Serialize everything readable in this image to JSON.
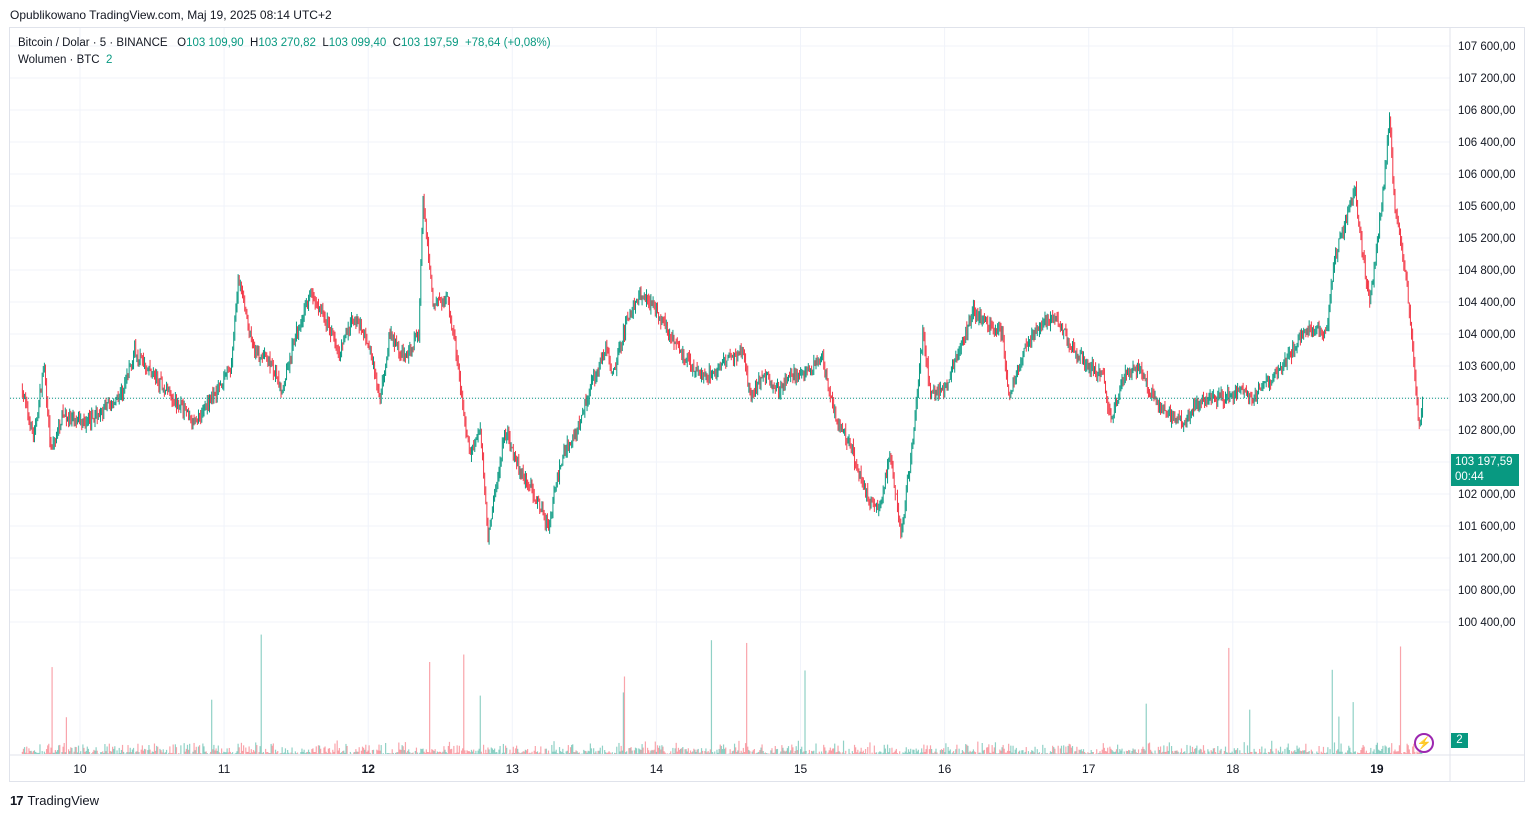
{
  "published": "Opublikowano TradingView.com, Maj 19, 2025 08:14 UTC+2",
  "legend": {
    "symbol": "Bitcoin / Dolar · 5 · BINANCE",
    "o_label": "O",
    "o_value": "103 109,90",
    "h_label": "H",
    "h_value": "103 270,82",
    "l_label": "L",
    "l_value": "103 099,40",
    "c_label": "C",
    "c_value": "103 197,59",
    "change": "+78,64 (+0,08%)",
    "volume_label": "Wolumen · BTC",
    "volume_value": "2"
  },
  "price_badge": {
    "price": "103 197,59",
    "countdown": "00:44"
  },
  "volume_badge": "2",
  "footer_brand": "TradingView",
  "colors": {
    "up": "#089981",
    "down": "#F23645",
    "grid": "#f0f3fa",
    "text": "#131722"
  },
  "chart_data": {
    "type": "candlestick",
    "symbol": "BTCUSD",
    "interval": "5",
    "y_ticks": [
      "107 600,00",
      "107 200,00",
      "106 800,00",
      "106 400,00",
      "106 000,00",
      "105 600,00",
      "105 200,00",
      "104 800,00",
      "104 400,00",
      "104 000,00",
      "103 600,00",
      "103 200,00",
      "102 800,00",
      "102 400,00",
      "102 000,00",
      "101 600,00",
      "101 200,00",
      "100 800,00",
      "100 400,00"
    ],
    "x_ticks": [
      "10",
      "11",
      "12",
      "13",
      "14",
      "15",
      "16",
      "17",
      "18",
      "19"
    ],
    "ylim": [
      100100,
      107900
    ],
    "last_price": 103197.59,
    "price_path": [
      [
        9.6,
        103300
      ],
      [
        9.68,
        102700
      ],
      [
        9.75,
        103600
      ],
      [
        9.8,
        102500
      ],
      [
        9.88,
        103000
      ],
      [
        9.95,
        102900
      ],
      [
        10.05,
        102900
      ],
      [
        10.2,
        103100
      ],
      [
        10.3,
        103300
      ],
      [
        10.38,
        103800
      ],
      [
        10.5,
        103500
      ],
      [
        10.65,
        103200
      ],
      [
        10.8,
        102900
      ],
      [
        10.95,
        103300
      ],
      [
        11.05,
        103600
      ],
      [
        11.1,
        104700
      ],
      [
        11.2,
        103800
      ],
      [
        11.3,
        103700
      ],
      [
        11.4,
        103300
      ],
      [
        11.5,
        104000
      ],
      [
        11.6,
        104500
      ],
      [
        11.7,
        104200
      ],
      [
        11.8,
        103800
      ],
      [
        11.9,
        104200
      ],
      [
        12.0,
        103900
      ],
      [
        12.08,
        103200
      ],
      [
        12.15,
        104000
      ],
      [
        12.25,
        103700
      ],
      [
        12.35,
        104000
      ],
      [
        12.38,
        105700
      ],
      [
        12.45,
        104400
      ],
      [
        12.55,
        104400
      ],
      [
        12.6,
        103900
      ],
      [
        12.65,
        103200
      ],
      [
        12.7,
        102500
      ],
      [
        12.78,
        102800
      ],
      [
        12.83,
        101500
      ],
      [
        12.88,
        102000
      ],
      [
        12.95,
        102800
      ],
      [
        13.05,
        102300
      ],
      [
        13.15,
        102000
      ],
      [
        13.25,
        101600
      ],
      [
        13.35,
        102500
      ],
      [
        13.45,
        102800
      ],
      [
        13.55,
        103400
      ],
      [
        13.65,
        103800
      ],
      [
        13.7,
        103500
      ],
      [
        13.8,
        104200
      ],
      [
        13.9,
        104500
      ],
      [
        14.0,
        104300
      ],
      [
        14.1,
        104000
      ],
      [
        14.2,
        103700
      ],
      [
        14.3,
        103500
      ],
      [
        14.4,
        103500
      ],
      [
        14.5,
        103700
      ],
      [
        14.6,
        103800
      ],
      [
        14.65,
        103200
      ],
      [
        14.75,
        103500
      ],
      [
        14.85,
        103300
      ],
      [
        14.95,
        103500
      ],
      [
        15.05,
        103500
      ],
      [
        15.15,
        103700
      ],
      [
        15.25,
        102900
      ],
      [
        15.35,
        102600
      ],
      [
        15.45,
        102000
      ],
      [
        15.55,
        101800
      ],
      [
        15.62,
        102500
      ],
      [
        15.7,
        101500
      ],
      [
        15.78,
        102700
      ],
      [
        15.85,
        104000
      ],
      [
        15.9,
        103300
      ],
      [
        16.0,
        103300
      ],
      [
        16.1,
        103800
      ],
      [
        16.2,
        104300
      ],
      [
        16.3,
        104100
      ],
      [
        16.4,
        104000
      ],
      [
        16.45,
        103200
      ],
      [
        16.55,
        103800
      ],
      [
        16.65,
        104100
      ],
      [
        16.75,
        104200
      ],
      [
        16.8,
        104100
      ],
      [
        16.9,
        103800
      ],
      [
        17.0,
        103600
      ],
      [
        17.1,
        103500
      ],
      [
        17.15,
        102900
      ],
      [
        17.25,
        103500
      ],
      [
        17.35,
        103600
      ],
      [
        17.45,
        103200
      ],
      [
        17.55,
        103000
      ],
      [
        17.65,
        102900
      ],
      [
        17.75,
        103100
      ],
      [
        17.85,
        103200
      ],
      [
        17.95,
        103200
      ],
      [
        18.05,
        103300
      ],
      [
        18.15,
        103200
      ],
      [
        18.25,
        103400
      ],
      [
        18.35,
        103600
      ],
      [
        18.45,
        103900
      ],
      [
        18.55,
        104100
      ],
      [
        18.65,
        104000
      ],
      [
        18.7,
        104900
      ],
      [
        18.78,
        105400
      ],
      [
        18.85,
        105800
      ],
      [
        18.9,
        105000
      ],
      [
        18.95,
        104400
      ],
      [
        19.0,
        105100
      ],
      [
        19.05,
        105900
      ],
      [
        19.09,
        106700
      ],
      [
        19.12,
        105600
      ],
      [
        19.17,
        105100
      ],
      [
        19.21,
        104600
      ],
      [
        19.25,
        103800
      ],
      [
        19.29,
        102800
      ],
      [
        19.32,
        103200
      ]
    ]
  }
}
